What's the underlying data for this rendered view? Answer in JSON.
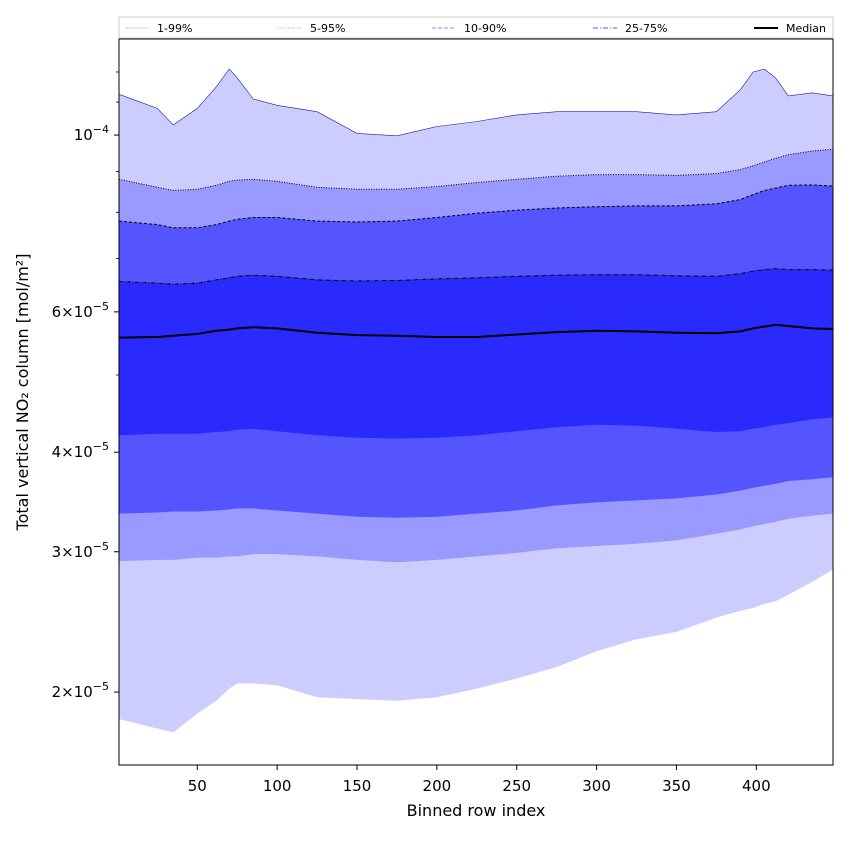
{
  "chart_data": {
    "type": "area",
    "xlabel": "Binned row index",
    "ylabel": "Total vertical NO₂ column [mol/m²]",
    "xlim": [
      1,
      448
    ],
    "ylim": [
      1.62e-05,
      0.000132
    ],
    "yscale": "log",
    "x_ticks": [
      50,
      100,
      150,
      200,
      250,
      300,
      350,
      400
    ],
    "y_ticks": [
      {
        "value": 2e-05,
        "mantissa": "2",
        "exp": "−5"
      },
      {
        "value": 3e-05,
        "mantissa": "3",
        "exp": "−5"
      },
      {
        "value": 4e-05,
        "mantissa": "4",
        "exp": "−5"
      },
      {
        "value": 6e-05,
        "mantissa": "6",
        "exp": "−5"
      },
      {
        "value": 0.0001,
        "mantissa": "",
        "exp": "−4"
      }
    ],
    "legend_position": "top",
    "x": [
      1,
      25,
      35,
      50,
      62,
      70,
      75,
      85,
      100,
      125,
      150,
      175,
      200,
      225,
      250,
      275,
      300,
      325,
      350,
      375,
      390,
      398,
      405,
      412,
      420,
      435,
      448
    ],
    "bands": [
      {
        "name": "1-99%",
        "color": "#ccccff",
        "lower": [
          1.85e-05,
          1.8e-05,
          1.78e-05,
          1.88e-05,
          1.95e-05,
          2.02e-05,
          2.05e-05,
          2.05e-05,
          2.04e-05,
          1.97e-05,
          1.96e-05,
          1.95e-05,
          1.97e-05,
          2.02e-05,
          2.08e-05,
          2.15e-05,
          2.25e-05,
          2.33e-05,
          2.38e-05,
          2.48e-05,
          2.53e-05,
          2.55e-05,
          2.58e-05,
          2.6e-05,
          2.65e-05,
          2.75e-05,
          2.85e-05
        ],
        "upper": [
          0.0001125,
          0.000108,
          0.000103,
          0.000108,
          0.000115,
          0.000121,
          0.000118,
          0.000111,
          0.000109,
          0.000107,
          0.0001005,
          9.98e-05,
          0.0001025,
          0.000104,
          0.000106,
          0.000107,
          0.000107,
          0.000107,
          0.000106,
          0.000107,
          0.000114,
          0.00012,
          0.000121,
          0.000118,
          0.000112,
          0.000113,
          0.000112
        ]
      },
      {
        "name": "5-95%",
        "color": "#9999ff",
        "lower": [
          2.92e-05,
          2.93e-05,
          2.93e-05,
          2.95e-05,
          2.95e-05,
          2.96e-05,
          2.96e-05,
          2.98e-05,
          2.98e-05,
          2.96e-05,
          2.93e-05,
          2.91e-05,
          2.93e-05,
          2.96e-05,
          2.99e-05,
          3.03e-05,
          3.05e-05,
          3.07e-05,
          3.1e-05,
          3.16e-05,
          3.2e-05,
          3.23e-05,
          3.25e-05,
          3.27e-05,
          3.3e-05,
          3.33e-05,
          3.35e-05
        ],
        "upper": [
          8.8e-05,
          8.6e-05,
          8.52e-05,
          8.55e-05,
          8.65e-05,
          8.75e-05,
          8.78e-05,
          8.8e-05,
          8.75e-05,
          8.6e-05,
          8.55e-05,
          8.55e-05,
          8.62e-05,
          8.72e-05,
          8.8e-05,
          8.88e-05,
          8.92e-05,
          8.92e-05,
          8.9e-05,
          8.95e-05,
          9.05e-05,
          9.15e-05,
          9.25e-05,
          9.35e-05,
          9.45e-05,
          9.55e-05,
          9.6e-05
        ]
      },
      {
        "name": "10-90%",
        "color": "#5555ff",
        "lower": [
          3.35e-05,
          3.36e-05,
          3.37e-05,
          3.37e-05,
          3.38e-05,
          3.39e-05,
          3.4e-05,
          3.4e-05,
          3.38e-05,
          3.35e-05,
          3.32e-05,
          3.31e-05,
          3.32e-05,
          3.35e-05,
          3.38e-05,
          3.43e-05,
          3.46e-05,
          3.48e-05,
          3.5e-05,
          3.54e-05,
          3.58e-05,
          3.61e-05,
          3.63e-05,
          3.65e-05,
          3.68e-05,
          3.7e-05,
          3.72e-05
        ],
        "upper": [
          7.8e-05,
          7.72e-05,
          7.65e-05,
          7.65e-05,
          7.72e-05,
          7.8e-05,
          7.84e-05,
          7.88e-05,
          7.88e-05,
          7.8e-05,
          7.78e-05,
          7.8e-05,
          7.88e-05,
          7.98e-05,
          8.05e-05,
          8.1e-05,
          8.13e-05,
          8.15e-05,
          8.15e-05,
          8.2e-05,
          8.3e-05,
          8.42e-05,
          8.52e-05,
          8.58e-05,
          8.65e-05,
          8.66e-05,
          8.63e-05
        ]
      },
      {
        "name": "25-75%",
        "color": "#2a2aff",
        "lower": [
          4.2e-05,
          4.22e-05,
          4.22e-05,
          4.22e-05,
          4.24e-05,
          4.25e-05,
          4.27e-05,
          4.28e-05,
          4.25e-05,
          4.2e-05,
          4.17e-05,
          4.16e-05,
          4.17e-05,
          4.2e-05,
          4.25e-05,
          4.3e-05,
          4.33e-05,
          4.32e-05,
          4.28e-05,
          4.24e-05,
          4.25e-05,
          4.28e-05,
          4.3e-05,
          4.33e-05,
          4.35e-05,
          4.4e-05,
          4.42e-05
        ],
        "upper": [
          6.55e-05,
          6.52e-05,
          6.5e-05,
          6.52e-05,
          6.58e-05,
          6.62e-05,
          6.65e-05,
          6.67e-05,
          6.65e-05,
          6.58e-05,
          6.56e-05,
          6.57e-05,
          6.6e-05,
          6.62e-05,
          6.65e-05,
          6.67e-05,
          6.68e-05,
          6.68e-05,
          6.66e-05,
          6.65e-05,
          6.7e-05,
          6.75e-05,
          6.78e-05,
          6.8e-05,
          6.78e-05,
          6.78e-05,
          6.77e-05
        ]
      }
    ],
    "median": {
      "name": "Median",
      "color": "#000000",
      "values": [
        5.57e-05,
        5.58e-05,
        5.6e-05,
        5.63e-05,
        5.68e-05,
        5.7e-05,
        5.72e-05,
        5.74e-05,
        5.72e-05,
        5.65e-05,
        5.61e-05,
        5.6e-05,
        5.58e-05,
        5.58e-05,
        5.62e-05,
        5.66e-05,
        5.68e-05,
        5.67e-05,
        5.65e-05,
        5.64e-05,
        5.67e-05,
        5.72e-05,
        5.75e-05,
        5.78e-05,
        5.76e-05,
        5.72e-05,
        5.71e-05
      ]
    },
    "legend": [
      {
        "label": "1-99%",
        "color": "#ccccff",
        "dash": "solid"
      },
      {
        "label": "5-95%",
        "color": "#9999ff",
        "dash": "dotted"
      },
      {
        "label": "10-90%",
        "color": "#8888ff",
        "dash": "dashed"
      },
      {
        "label": "25-75%",
        "color": "#5555ff",
        "dash": "dashdot"
      },
      {
        "label": "Median",
        "color": "#000000",
        "dash": "solid"
      }
    ]
  }
}
